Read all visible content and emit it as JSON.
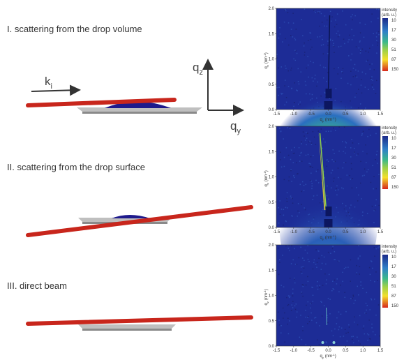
{
  "panels": [
    {
      "label": "I. scattering from the drop volume"
    },
    {
      "label": "II. scattering from the drop surface"
    },
    {
      "label": "III. direct beam"
    }
  ],
  "vectors": {
    "ki": {
      "base": "k",
      "sub": "i"
    },
    "qz": {
      "base": "q",
      "sub": "z"
    },
    "qy": {
      "base": "q",
      "sub": "y"
    }
  },
  "plot_axes": {
    "xlabel": {
      "base": "q",
      "sub": "y",
      "unit": "(nm",
      "sup": "-1",
      "close": ")"
    },
    "ylabel": {
      "base": "q",
      "sub": "z",
      "unit": "(nm",
      "sup": "-1",
      "close": ")"
    },
    "xticks": [
      "-1.5",
      "-1.0",
      "-0.5",
      "0.0",
      "0.5",
      "1.0",
      "1.5"
    ],
    "yticks": [
      "0.0",
      "0.5",
      "1.0",
      "1.5",
      "2.0"
    ],
    "colorbar_title": "intensity",
    "colorbar_unit": "(arb. u.)",
    "colorbar_ticks": [
      "10",
      "17",
      "30",
      "51",
      "87",
      "150"
    ]
  }
}
